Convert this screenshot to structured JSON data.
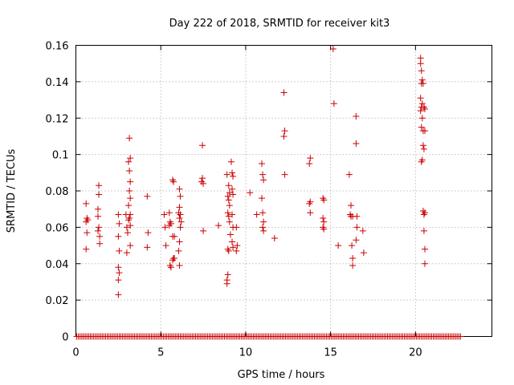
{
  "chart_data": {
    "type": "scatter",
    "title": "Day 222 of 2018, SRMTID for receiver kit3",
    "xlabel": "GPS time / hours",
    "ylabel": "SRMTID / TECUs",
    "xlim": [
      0,
      24.5
    ],
    "ylim": [
      0,
      0.16
    ],
    "xticks": [
      0,
      5,
      10,
      15,
      20
    ],
    "xtick_labels": [
      "0",
      "5",
      "10",
      "15",
      "20"
    ],
    "yticks": [
      0,
      0.02,
      0.04,
      0.06,
      0.08,
      0.1,
      0.12,
      0.14,
      0.16
    ],
    "ytick_labels": [
      "0",
      "0.02",
      "0.04",
      "0.06",
      "0.08",
      "0.1",
      "0.12",
      "0.14",
      "0.16"
    ],
    "grid": true,
    "marker": "+",
    "color": "#cc0000",
    "zero_baseline": {
      "x_start": 0.05,
      "x_end": 22.7,
      "x_step": 0.1,
      "value": 0
    },
    "series": [
      {
        "name": "SRMTID",
        "points": [
          [
            0.6,
            0.073
          ],
          [
            0.6,
            0.063
          ],
          [
            0.65,
            0.065
          ],
          [
            0.7,
            0.064
          ],
          [
            0.65,
            0.057
          ],
          [
            0.6,
            0.048
          ],
          [
            1.35,
            0.083
          ],
          [
            1.35,
            0.078
          ],
          [
            1.3,
            0.07
          ],
          [
            1.3,
            0.066
          ],
          [
            1.35,
            0.06
          ],
          [
            1.3,
            0.058
          ],
          [
            1.4,
            0.055
          ],
          [
            1.4,
            0.051
          ],
          [
            2.5,
            0.067
          ],
          [
            2.55,
            0.062
          ],
          [
            2.5,
            0.055
          ],
          [
            2.55,
            0.047
          ],
          [
            2.5,
            0.038
          ],
          [
            2.55,
            0.035
          ],
          [
            2.5,
            0.031
          ],
          [
            2.5,
            0.023
          ],
          [
            2.95,
            0.067
          ],
          [
            3.0,
            0.06
          ],
          [
            3.05,
            0.057
          ],
          [
            3.0,
            0.046
          ],
          [
            3.1,
            0.096
          ],
          [
            3.2,
            0.098
          ],
          [
            3.15,
            0.091
          ],
          [
            3.2,
            0.085
          ],
          [
            3.15,
            0.08
          ],
          [
            3.2,
            0.076
          ],
          [
            3.1,
            0.072
          ],
          [
            3.2,
            0.067
          ],
          [
            3.15,
            0.065
          ],
          [
            3.1,
            0.064
          ],
          [
            3.2,
            0.061
          ],
          [
            3.2,
            0.05
          ],
          [
            3.15,
            0.109
          ],
          [
            4.2,
            0.077
          ],
          [
            4.25,
            0.057
          ],
          [
            4.2,
            0.049
          ],
          [
            5.2,
            0.067
          ],
          [
            5.25,
            0.06
          ],
          [
            5.3,
            0.05
          ],
          [
            5.5,
            0.068
          ],
          [
            5.55,
            0.063
          ],
          [
            5.6,
            0.062
          ],
          [
            5.5,
            0.061
          ],
          [
            5.55,
            0.039
          ],
          [
            5.6,
            0.038
          ],
          [
            5.7,
            0.086
          ],
          [
            5.75,
            0.085
          ],
          [
            5.7,
            0.055
          ],
          [
            5.8,
            0.055
          ],
          [
            5.75,
            0.043
          ],
          [
            5.8,
            0.043
          ],
          [
            5.7,
            0.042
          ],
          [
            6.1,
            0.081
          ],
          [
            6.15,
            0.077
          ],
          [
            6.1,
            0.071
          ],
          [
            6.05,
            0.068
          ],
          [
            6.15,
            0.067
          ],
          [
            6.1,
            0.065
          ],
          [
            6.2,
            0.063
          ],
          [
            6.15,
            0.06
          ],
          [
            6.1,
            0.052
          ],
          [
            6.05,
            0.047
          ],
          [
            6.1,
            0.039
          ],
          [
            7.45,
            0.105
          ],
          [
            7.45,
            0.087
          ],
          [
            7.4,
            0.085
          ],
          [
            7.5,
            0.084
          ],
          [
            7.5,
            0.058
          ],
          [
            8.4,
            0.061
          ],
          [
            8.9,
            0.089
          ],
          [
            9.0,
            0.083
          ],
          [
            9.05,
            0.079
          ],
          [
            8.95,
            0.077
          ],
          [
            9.0,
            0.075
          ],
          [
            9.05,
            0.072
          ],
          [
            8.95,
            0.068
          ],
          [
            9.0,
            0.066
          ],
          [
            9.05,
            0.063
          ],
          [
            9.1,
            0.056
          ],
          [
            8.95,
            0.048
          ],
          [
            9.0,
            0.047
          ],
          [
            8.95,
            0.034
          ],
          [
            8.9,
            0.031
          ],
          [
            8.9,
            0.029
          ],
          [
            9.15,
            0.096
          ],
          [
            9.2,
            0.09
          ],
          [
            9.25,
            0.088
          ],
          [
            9.2,
            0.081
          ],
          [
            9.25,
            0.078
          ],
          [
            9.2,
            0.067
          ],
          [
            9.25,
            0.06
          ],
          [
            9.2,
            0.052
          ],
          [
            9.25,
            0.049
          ],
          [
            9.45,
            0.06
          ],
          [
            9.5,
            0.05
          ],
          [
            9.45,
            0.047
          ],
          [
            10.25,
            0.079
          ],
          [
            10.65,
            0.067
          ],
          [
            10.95,
            0.095
          ],
          [
            11.0,
            0.089
          ],
          [
            11.05,
            0.086
          ],
          [
            10.95,
            0.076
          ],
          [
            11.0,
            0.068
          ],
          [
            11.05,
            0.063
          ],
          [
            11.0,
            0.06
          ],
          [
            11.05,
            0.058
          ],
          [
            11.7,
            0.054
          ],
          [
            12.25,
            0.134
          ],
          [
            12.3,
            0.113
          ],
          [
            12.25,
            0.11
          ],
          [
            12.3,
            0.089
          ],
          [
            13.8,
            0.098
          ],
          [
            13.75,
            0.095
          ],
          [
            13.8,
            0.074
          ],
          [
            13.75,
            0.073
          ],
          [
            13.8,
            0.068
          ],
          [
            14.55,
            0.076
          ],
          [
            14.6,
            0.075
          ],
          [
            14.55,
            0.065
          ],
          [
            14.6,
            0.063
          ],
          [
            14.55,
            0.06
          ],
          [
            14.6,
            0.059
          ],
          [
            15.15,
            0.158
          ],
          [
            15.2,
            0.128
          ],
          [
            15.45,
            0.05
          ],
          [
            16.1,
            0.089
          ],
          [
            16.2,
            0.072
          ],
          [
            16.15,
            0.067
          ],
          [
            16.2,
            0.066
          ],
          [
            16.3,
            0.066
          ],
          [
            16.25,
            0.05
          ],
          [
            16.3,
            0.043
          ],
          [
            16.3,
            0.039
          ],
          [
            16.5,
            0.121
          ],
          [
            16.5,
            0.106
          ],
          [
            16.55,
            0.066
          ],
          [
            16.55,
            0.06
          ],
          [
            16.5,
            0.053
          ],
          [
            16.9,
            0.058
          ],
          [
            16.95,
            0.046
          ],
          [
            20.3,
            0.153
          ],
          [
            20.3,
            0.15
          ],
          [
            20.35,
            0.146
          ],
          [
            20.4,
            0.141
          ],
          [
            20.35,
            0.139
          ],
          [
            20.45,
            0.139
          ],
          [
            20.3,
            0.131
          ],
          [
            20.4,
            0.128
          ],
          [
            20.35,
            0.126
          ],
          [
            20.3,
            0.124
          ],
          [
            20.5,
            0.126
          ],
          [
            20.55,
            0.125
          ],
          [
            20.4,
            0.12
          ],
          [
            20.35,
            0.115
          ],
          [
            20.45,
            0.113
          ],
          [
            20.55,
            0.113
          ],
          [
            20.45,
            0.105
          ],
          [
            20.5,
            0.103
          ],
          [
            20.4,
            0.097
          ],
          [
            20.35,
            0.096
          ],
          [
            20.45,
            0.069
          ],
          [
            20.5,
            0.067
          ],
          [
            20.55,
            0.068
          ],
          [
            20.5,
            0.058
          ],
          [
            20.55,
            0.048
          ],
          [
            20.55,
            0.04
          ]
        ]
      }
    ]
  }
}
